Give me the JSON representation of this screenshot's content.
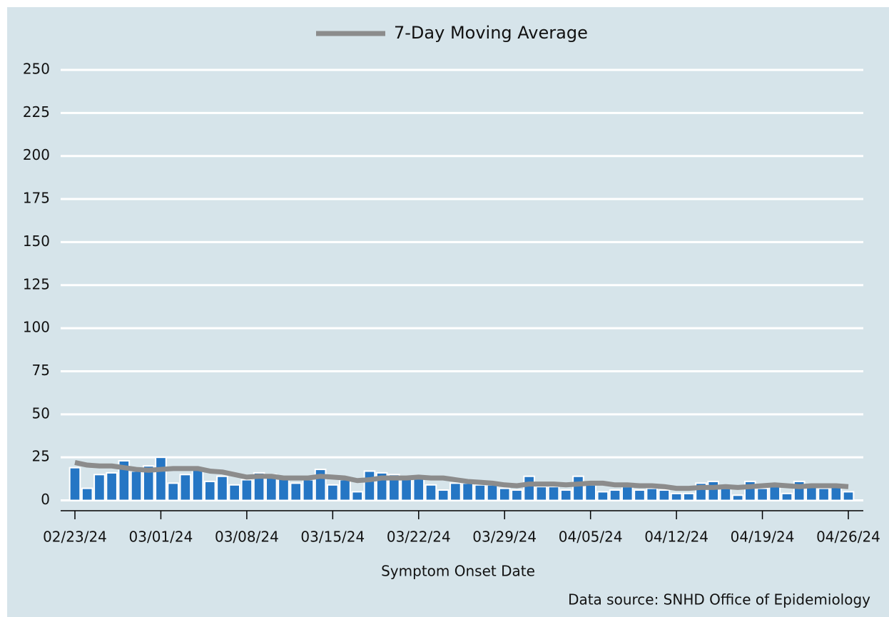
{
  "chart_data": {
    "type": "bar",
    "categories": [
      "02/23/24",
      null,
      null,
      null,
      null,
      null,
      null,
      "03/01/24",
      null,
      null,
      null,
      null,
      null,
      null,
      "03/08/24",
      null,
      null,
      null,
      null,
      null,
      null,
      "03/15/24",
      null,
      null,
      null,
      null,
      null,
      null,
      "03/22/24",
      null,
      null,
      null,
      null,
      null,
      null,
      "03/29/24",
      null,
      null,
      null,
      null,
      null,
      null,
      "04/05/24",
      null,
      null,
      null,
      null,
      null,
      null,
      "04/12/24",
      null,
      null,
      null,
      null,
      null,
      null,
      "04/19/24",
      null,
      null,
      null,
      null,
      null,
      null,
      "04/26/24"
    ],
    "series": [
      {
        "type": "bar",
        "color": "#2576c4",
        "values": [
          19,
          7,
          15,
          16,
          23,
          17,
          20,
          25,
          10,
          15,
          18,
          11,
          14,
          9,
          12,
          16,
          15,
          13,
          10,
          12,
          18,
          9,
          12,
          5,
          17,
          16,
          15,
          13,
          13,
          9,
          6,
          10,
          10,
          9,
          9,
          7,
          6,
          14,
          8,
          8,
          6,
          14,
          9,
          5,
          6,
          8,
          6,
          7,
          6,
          4,
          4,
          10,
          11,
          7,
          3,
          11,
          7,
          8,
          4,
          11,
          8,
          7,
          8,
          5
        ]
      },
      {
        "type": "line",
        "name": "7-Day Moving Average",
        "color": "#8c8c8c",
        "values": [
          22,
          20.5,
          20,
          20,
          19,
          18,
          17.5,
          18,
          18.5,
          18.5,
          18.5,
          17,
          16.5,
          15,
          13.5,
          14,
          14,
          13,
          13,
          13,
          14,
          13.5,
          13,
          11.5,
          12,
          13,
          13,
          13,
          13.5,
          13,
          13,
          12,
          11,
          10.5,
          10,
          9,
          8.5,
          9.5,
          9.5,
          9.5,
          9,
          9.5,
          10,
          10,
          9,
          9,
          8.5,
          8.5,
          8,
          7,
          7,
          7.5,
          7.5,
          8,
          7.5,
          8,
          8.5,
          9,
          8.5,
          8,
          8.5,
          8.5,
          8.5,
          8
        ]
      }
    ],
    "ylim": [
      -6,
      250
    ],
    "yticks": [
      0,
      25,
      50,
      75,
      100,
      125,
      150,
      175,
      200,
      225,
      250
    ],
    "grid": true,
    "legend": "top",
    "x_label": "Symptom Onset Date",
    "source": "Data source: SNHD Office of Epidemiology"
  }
}
